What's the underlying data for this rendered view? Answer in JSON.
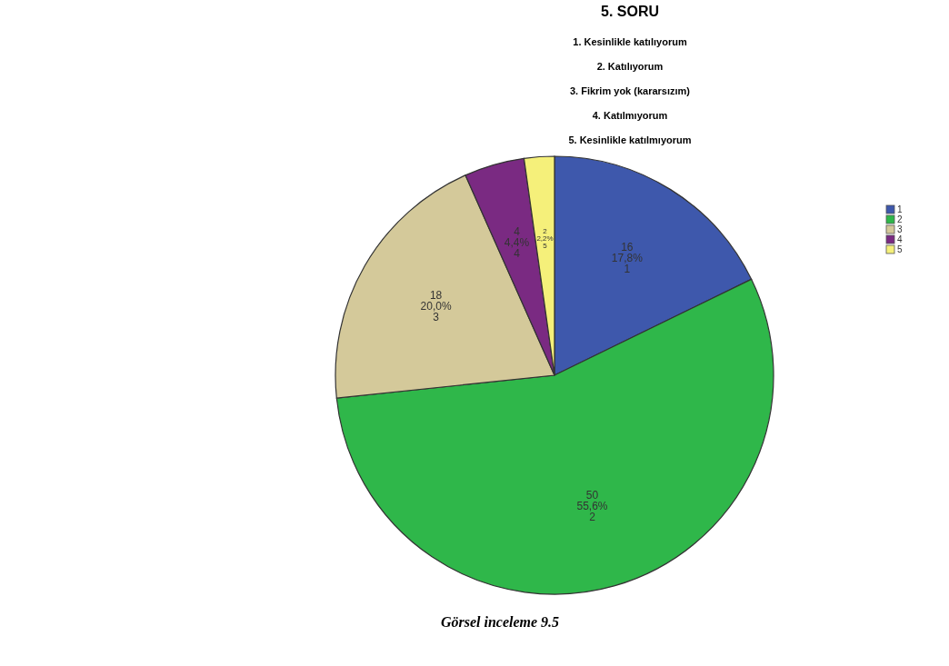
{
  "chart_data": {
    "type": "pie",
    "title": "5. SORU",
    "annotations": [
      "1. Kesinlikle katılıyorum",
      "2. Katılıyorum",
      "3. Fikrim yok (kararsızım)",
      "4. Katılmıyorum",
      "5. Kesinlikle katılmıyorum",
      "Görsel inceleme 9.5"
    ],
    "categories": [
      "1",
      "2",
      "3",
      "4",
      "5"
    ],
    "values": [
      16,
      50,
      18,
      4,
      2
    ],
    "colors": [
      "#3e58ac",
      "#2fb74a",
      "#d4c99a",
      "#7a2a82",
      "#f5f07a"
    ],
    "value_labels": [
      "16\n17,8%\n1",
      "50\n55,6%\n2",
      "18\n20,0%\n3",
      "4\n4,4%\n4",
      "2\n2,2%\n5"
    ],
    "legend": "right"
  }
}
